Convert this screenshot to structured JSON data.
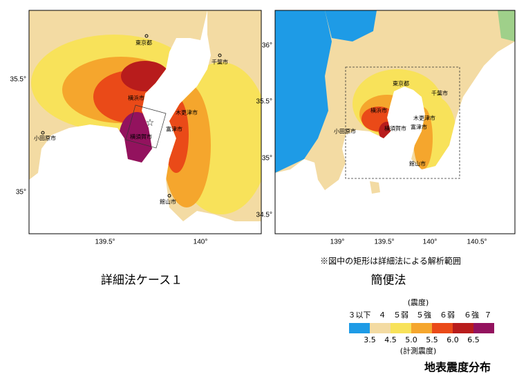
{
  "maps": [
    {
      "caption": "詳細法ケース１",
      "y_labels": [
        "35.5°",
        "35°"
      ],
      "x_labels": [
        "139.5°",
        "140°"
      ],
      "cities": [
        "東京都",
        "千葉市",
        "横浜市",
        "木更津市",
        "富津市",
        "横須賀市",
        "小田原市",
        "館山市"
      ]
    },
    {
      "caption": "簡便法",
      "note": "※図中の矩形は詳細法による解析範囲",
      "y_labels": [
        "36°",
        "35.5°",
        "35°",
        "34.5°"
      ],
      "x_labels": [
        "139°",
        "139.5°",
        "140°",
        "140.5°"
      ],
      "cities": [
        "東京都",
        "千葉市",
        "横浜市",
        "木更津市",
        "富津市",
        "横須賀市",
        "小田原市",
        "館山市"
      ]
    }
  ],
  "legend": {
    "title": "(震度)",
    "classes": [
      {
        "label": "３以下",
        "color": "#1e9be6"
      },
      {
        "label": "４",
        "color": "#f3dba3"
      },
      {
        "label": "５弱",
        "color": "#f8e25a"
      },
      {
        "label": "５強",
        "color": "#f5a62d"
      },
      {
        "label": "６弱",
        "color": "#ea4a18"
      },
      {
        "label": "６強",
        "color": "#b81c1c"
      },
      {
        "label": "７",
        "color": "#93125e"
      }
    ],
    "boundaries": [
      "3.5",
      "4.5",
      "5.0",
      "5.5",
      "6.0",
      "6.5"
    ],
    "axis_title": "(計測震度)"
  },
  "footer": "地表震度分布"
}
